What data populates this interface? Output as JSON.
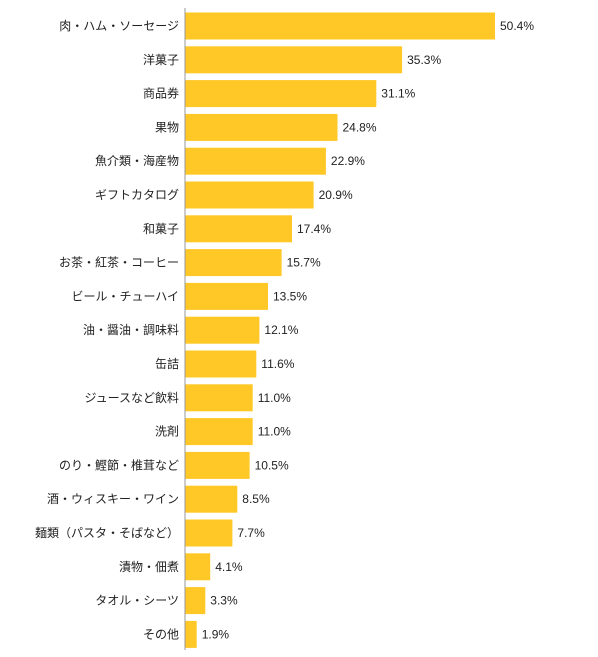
{
  "chart_data": {
    "type": "bar",
    "orientation": "horizontal",
    "title": "",
    "xlabel": "",
    "ylabel": "",
    "categories": [
      "肉・ハム・ソーセージ",
      "洋菓子",
      "商品券",
      "果物",
      "魚介類・海産物",
      "ギフトカタログ",
      "和菓子",
      "お茶・紅茶・コーヒー",
      "ビール・チューハイ",
      "油・醤油・調味料",
      "缶詰",
      "ジュースなど飲料",
      "洗剤",
      "のり・鰹節・椎茸など",
      "酒・ウィスキー・ワイン",
      "麺類（パスタ・そばなど）",
      "漬物・佃煮",
      "タオル・シーツ",
      "その他"
    ],
    "values": [
      50.4,
      35.3,
      31.1,
      24.8,
      22.9,
      20.9,
      17.4,
      15.7,
      13.5,
      12.1,
      11.6,
      11.0,
      11.0,
      10.5,
      8.5,
      7.7,
      4.1,
      3.3,
      1.9
    ],
    "value_labels": [
      "50.4%",
      "35.3%",
      "31.1%",
      "24.8%",
      "22.9%",
      "20.9%",
      "17.4%",
      "15.7%",
      "13.5%",
      "12.1%",
      "11.6%",
      "11.0%",
      "11.0%",
      "10.5%",
      "8.5%",
      "7.7%",
      "4.1%",
      "3.3%",
      "1.9%"
    ],
    "unit": "%",
    "xlim": [
      0,
      50.4
    ],
    "grid": false,
    "legend": "none",
    "colors": {
      "bar": "#FFC826",
      "axis": "#999999",
      "text": "#222222"
    }
  }
}
